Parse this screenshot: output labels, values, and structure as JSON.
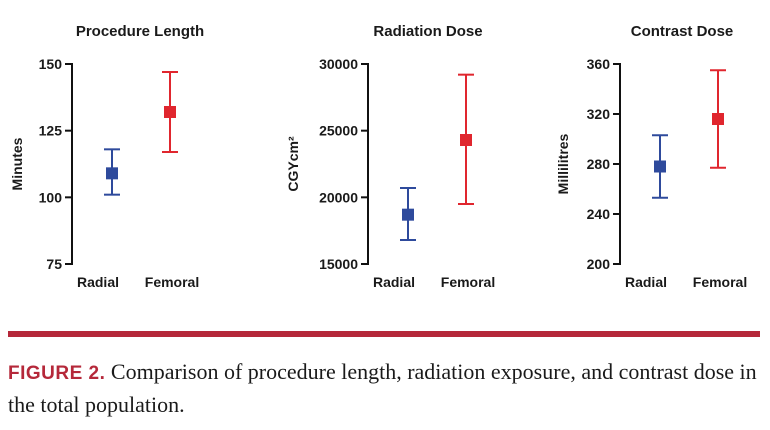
{
  "chart_data": [
    {
      "type": "scatter",
      "title": "Procedure Length",
      "ylabel": "Minutes",
      "ylim": [
        75,
        150
      ],
      "yticks": [
        "75",
        "100",
        "125",
        "150"
      ],
      "categories": [
        "Radial",
        "Femoral"
      ],
      "colors": [
        "#2e4a9c",
        "#e0262e"
      ],
      "points": [
        {
          "category": "Radial",
          "mean": 109,
          "lower": 101,
          "upper": 118
        },
        {
          "category": "Femoral",
          "mean": 132,
          "lower": 117,
          "upper": 147
        }
      ]
    },
    {
      "type": "scatter",
      "title": "Radiation Dose",
      "ylabel": "CGYcm²",
      "ylim": [
        15000,
        30000
      ],
      "yticks": [
        "15000",
        "20000",
        "25000",
        "30000"
      ],
      "categories": [
        "Radial",
        "Femoral"
      ],
      "colors": [
        "#2e4a9c",
        "#e0262e"
      ],
      "points": [
        {
          "category": "Radial",
          "mean": 18700,
          "lower": 16800,
          "upper": 20700
        },
        {
          "category": "Femoral",
          "mean": 24300,
          "lower": 19500,
          "upper": 29200
        }
      ]
    },
    {
      "type": "scatter",
      "title": "Contrast Dose",
      "ylabel": "Millilitres",
      "ylim": [
        200,
        360
      ],
      "yticks": [
        "200",
        "240",
        "280",
        "320",
        "360"
      ],
      "categories": [
        "Radial",
        "Femoral"
      ],
      "colors": [
        "#2e4a9c",
        "#e0262e"
      ],
      "points": [
        {
          "category": "Radial",
          "mean": 278,
          "lower": 253,
          "upper": 303
        },
        {
          "category": "Femoral",
          "mean": 316,
          "lower": 277,
          "upper": 355
        }
      ]
    }
  ],
  "caption": {
    "label": "FIGURE 2.",
    "text": " Comparison of procedure length, radiation exposure, and contrast dose in the total population."
  }
}
